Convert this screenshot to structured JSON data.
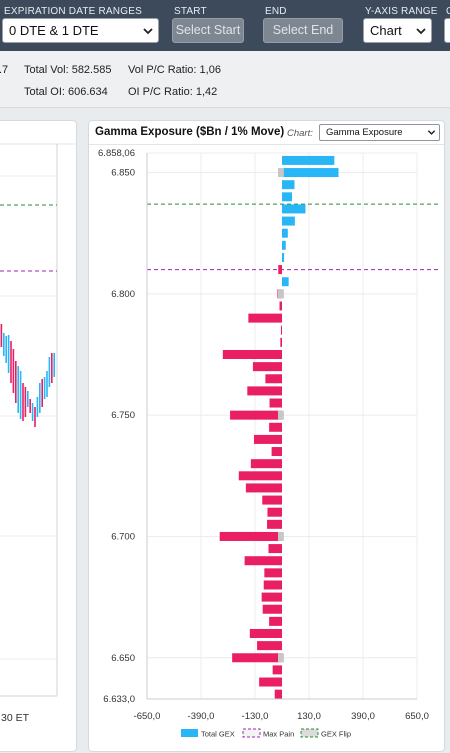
{
  "toolbar": {
    "expiration": {
      "label": "EXPIRATION DATE RANGES",
      "value": "0 DTE & 1 DTE"
    },
    "start": {
      "label": "START",
      "button": "Select Start"
    },
    "end": {
      "label": "END",
      "button": "Select End"
    },
    "yaxis": {
      "label": "Y-AXIS RANGE",
      "value": "Chart"
    },
    "extra": {
      "label": "C"
    }
  },
  "stats": {
    "partial_left": ".7",
    "total_vol": "Total Vol: 582.585",
    "vol_pc": "Vol P/C Ratio: 1,06",
    "total_oi": "Total OI: 606.634",
    "oi_pc": "OI P/C Ratio: 1,42"
  },
  "left_panel": {
    "time_label": "30 ET"
  },
  "gex_panel": {
    "title": "Gamma Exposure ($Bn / 1% Move)",
    "chart_label": "Chart:",
    "chart_select": "Gamma Exposure"
  },
  "colors": {
    "topbar": "#3d4a5c",
    "positive": "#29b6f6",
    "negative": "#e91e63",
    "max_pain": "#c7c7c7",
    "call_wall_line": "#2e8b3a",
    "put_wall_line": "#9c27b0"
  },
  "chart_data": {
    "type": "bar",
    "orientation": "horizontal",
    "ylim": [
      6633.0,
      6858.06
    ],
    "xlim": [
      -650,
      650
    ],
    "y_ticks": [
      "6.858,06",
      "6.850",
      "6.800",
      "6.750",
      "6.700",
      "6.650",
      "6.633,0"
    ],
    "x_ticks": [
      "-650,0",
      "-390,0",
      "-130,0",
      "130,0",
      "390,0",
      "650,0"
    ],
    "legend": [
      "Total GEX",
      "Max Pain",
      "GEX Flip"
    ],
    "legend_position": "bottom",
    "grid": true,
    "reference_lines": [
      {
        "type": "call",
        "y": 6837
      },
      {
        "type": "put",
        "y": 6810
      }
    ],
    "series": [
      {
        "name": "Total GEX",
        "strikes": [
          6855,
          6850,
          6845,
          6840,
          6835,
          6830,
          6825,
          6820,
          6815,
          6810,
          6805,
          6800,
          6795,
          6790,
          6785,
          6780,
          6775,
          6770,
          6765,
          6760,
          6755,
          6750,
          6745,
          6740,
          6735,
          6730,
          6725,
          6720,
          6715,
          6710,
          6705,
          6700,
          6695,
          6690,
          6685,
          6680,
          6675,
          6670,
          6665,
          6660,
          6655,
          6650,
          6645,
          6640,
          6635
        ],
        "values": [
          252,
          272,
          60,
          48,
          113,
          62,
          28,
          18,
          10,
          -18,
          32,
          -22,
          -12,
          -162,
          -5,
          -8,
          -285,
          -140,
          -80,
          -167,
          -60,
          -250,
          -62,
          -135,
          -50,
          -150,
          -208,
          -174,
          -95,
          -70,
          -72,
          -300,
          -65,
          -180,
          -85,
          -88,
          -98,
          -93,
          -62,
          -155,
          -120,
          -240,
          -45,
          -110,
          -35
        ]
      },
      {
        "name": "Max Pain",
        "strikes": [
          6850,
          6800,
          6750,
          6700,
          6650
        ],
        "values": [
          9,
          9,
          9,
          9,
          9
        ]
      }
    ]
  }
}
